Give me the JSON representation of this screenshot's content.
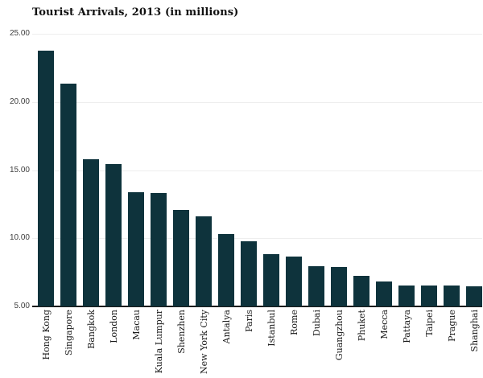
{
  "page": {
    "background": "#ffffff"
  },
  "chart_data": {
    "type": "bar",
    "title": "Tourist Arrivals, 2013 (in millions)",
    "categories": [
      "Hong Kong",
      "Singapore",
      "Bangkok",
      "London",
      "Macau",
      "Kuala Lumpur",
      "Shenzhen",
      "New York City",
      "Antalya",
      "Paris",
      "Istanbul",
      "Rome",
      "Dubai",
      "Guangzhou",
      "Phuket",
      "Mecca",
      "Pattaya",
      "Taipei",
      "Prague",
      "Shanghai"
    ],
    "values": [
      23.77,
      21.35,
      15.82,
      15.46,
      13.36,
      13.34,
      12.06,
      11.62,
      10.3,
      9.78,
      8.82,
      8.67,
      7.98,
      7.88,
      7.22,
      6.85,
      6.56,
      6.55,
      6.52,
      6.5
    ],
    "xlabel": "",
    "ylabel": "",
    "ylim": [
      5,
      25
    ],
    "yticks": [
      {
        "value": 25,
        "label": "25.00"
      },
      {
        "value": 20,
        "label": "20.00"
      },
      {
        "value": 15,
        "label": "15.00"
      },
      {
        "value": 10,
        "label": "10.00"
      },
      {
        "value": 5,
        "label": "5.00"
      }
    ],
    "grid": "horizontal-light",
    "legend": "none",
    "colors": {
      "bar": "#0e333c",
      "gridline": "#eeeeee",
      "axis_line": "#1b1b1b",
      "y_tick_text": "#3d3d3d",
      "x_tick_text": "#1a1a1a",
      "title_text": "#111111"
    }
  }
}
